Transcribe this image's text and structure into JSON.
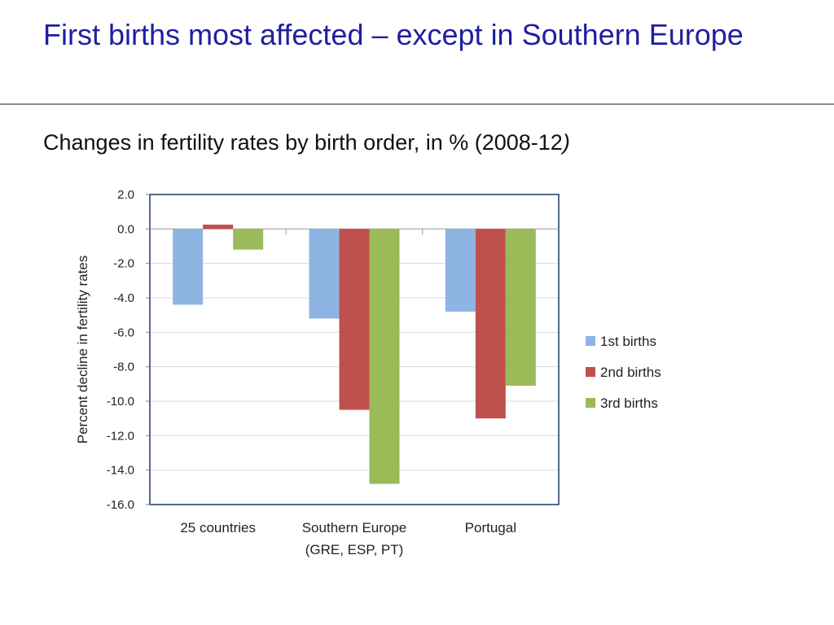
{
  "slide": {
    "title": "First births most affected – except in Southern Europe",
    "subtitle_main": "Changes in fertility rates by birth order, in % (2008-12",
    "subtitle_paren": ")"
  },
  "colors": {
    "title": "#1f1fa0",
    "series": [
      "#8eb4e3",
      "#c0504d",
      "#9bbb59"
    ],
    "axis": "#1f3864",
    "grid": "#d9d9d9"
  },
  "chart_data": {
    "type": "bar",
    "title": "",
    "xlabel": "",
    "ylabel": "Percent decline in fertility rates",
    "ylim": [
      -16.0,
      2.0
    ],
    "yticks": [
      "2.0",
      "0.0",
      "-2.0",
      "-4.0",
      "-6.0",
      "-8.0",
      "-10.0",
      "-12.0",
      "-14.0",
      "-16.0"
    ],
    "ytick_values": [
      2,
      0,
      -2,
      -4,
      -6,
      -8,
      -10,
      -12,
      -14,
      -16
    ],
    "categories": [
      [
        "25 countries"
      ],
      [
        "Southern Europe",
        "(GRE, ESP, PT)"
      ],
      [
        "Portugal"
      ]
    ],
    "series": [
      {
        "name": "1st births",
        "values": [
          -4.4,
          -5.2,
          -4.8
        ]
      },
      {
        "name": "2nd births",
        "values": [
          0.25,
          -10.5,
          -11.0
        ]
      },
      {
        "name": "3rd births",
        "values": [
          -1.2,
          -14.8,
          -9.1
        ]
      }
    ],
    "grid": true,
    "legend": "right"
  }
}
